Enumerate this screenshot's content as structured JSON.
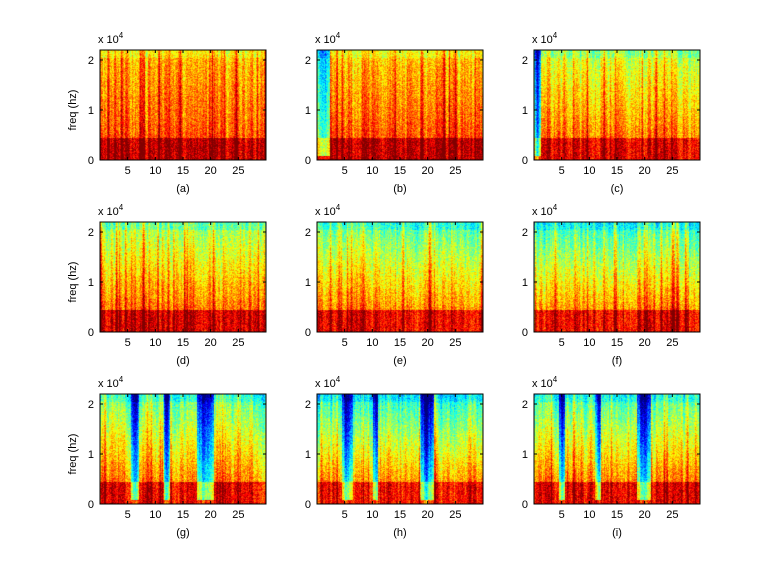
{
  "figure": {
    "scale_prefix": "x 10",
    "scale_exponent": "4"
  },
  "chart_data": [
    {
      "type": "heatmap",
      "panel_label": "(a)",
      "ylabel": "freq (hz)",
      "xlim": [
        0,
        30
      ],
      "ylim": [
        0,
        22000
      ],
      "xticks": [
        "5",
        "10",
        "15",
        "20",
        "25"
      ],
      "yticks": [
        "0",
        "1",
        "2"
      ],
      "grid": false,
      "colormap": "jet",
      "low_band_energy": 0.93,
      "high_band_energy": 0.68,
      "silent_spans": []
    },
    {
      "type": "heatmap",
      "panel_label": "(b)",
      "ylabel": "",
      "xlim": [
        0,
        30
      ],
      "ylim": [
        0,
        22000
      ],
      "xticks": [
        "5",
        "10",
        "15",
        "20",
        "25"
      ],
      "yticks": [
        "0",
        "1",
        "2"
      ],
      "grid": false,
      "colormap": "jet",
      "low_band_energy": 0.93,
      "high_band_energy": 0.66,
      "silent_spans": [
        [
          0,
          2.2
        ]
      ]
    },
    {
      "type": "heatmap",
      "panel_label": "(c)",
      "ylabel": "",
      "xlim": [
        0,
        30
      ],
      "ylim": [
        0,
        22000
      ],
      "xticks": [
        "5",
        "10",
        "15",
        "20",
        "25"
      ],
      "yticks": [
        "0",
        "1",
        "2"
      ],
      "grid": false,
      "colormap": "jet",
      "low_band_energy": 0.88,
      "high_band_energy": 0.55,
      "silent_spans": [
        [
          0,
          1.2
        ]
      ]
    },
    {
      "type": "heatmap",
      "panel_label": "(d)",
      "ylabel": "freq (hz)",
      "xlim": [
        0,
        30
      ],
      "ylim": [
        0,
        22000
      ],
      "xticks": [
        "5",
        "10",
        "15",
        "20",
        "25"
      ],
      "yticks": [
        "0",
        "1",
        "2"
      ],
      "grid": false,
      "colormap": "jet",
      "low_band_energy": 0.9,
      "high_band_energy": 0.5,
      "silent_spans": []
    },
    {
      "type": "heatmap",
      "panel_label": "(e)",
      "ylabel": "",
      "xlim": [
        0,
        30
      ],
      "ylim": [
        0,
        22000
      ],
      "xticks": [
        "5",
        "10",
        "15",
        "20",
        "25"
      ],
      "yticks": [
        "0",
        "1",
        "2"
      ],
      "grid": false,
      "colormap": "jet",
      "low_band_energy": 0.88,
      "high_band_energy": 0.45,
      "silent_spans": []
    },
    {
      "type": "heatmap",
      "panel_label": "(f)",
      "ylabel": "",
      "xlim": [
        0,
        30
      ],
      "ylim": [
        0,
        22000
      ],
      "xticks": [
        "5",
        "10",
        "15",
        "20",
        "25"
      ],
      "yticks": [
        "0",
        "1",
        "2"
      ],
      "grid": false,
      "colormap": "jet",
      "low_band_energy": 0.86,
      "high_band_energy": 0.4,
      "silent_spans": []
    },
    {
      "type": "heatmap",
      "panel_label": "(g)",
      "ylabel": "freq (hz)",
      "xlim": [
        0,
        30
      ],
      "ylim": [
        0,
        22000
      ],
      "xticks": [
        "5",
        "10",
        "15",
        "20",
        "25"
      ],
      "yticks": [
        "0",
        "1",
        "2"
      ],
      "grid": false,
      "colormap": "jet",
      "low_band_energy": 0.88,
      "high_band_energy": 0.45,
      "silent_spans": [
        [
          5.5,
          7
        ],
        [
          11.5,
          12.5
        ],
        [
          17.5,
          20.5
        ]
      ]
    },
    {
      "type": "heatmap",
      "panel_label": "(h)",
      "ylabel": "",
      "xlim": [
        0,
        30
      ],
      "ylim": [
        0,
        22000
      ],
      "xticks": [
        "5",
        "10",
        "15",
        "20",
        "25"
      ],
      "yticks": [
        "0",
        "1",
        "2"
      ],
      "grid": false,
      "colormap": "jet",
      "low_band_energy": 0.86,
      "high_band_energy": 0.38,
      "silent_spans": [
        [
          4.5,
          6.5
        ],
        [
          10,
          11
        ],
        [
          18.5,
          21
        ]
      ]
    },
    {
      "type": "heatmap",
      "panel_label": "(i)",
      "ylabel": "",
      "xlim": [
        0,
        30
      ],
      "ylim": [
        0,
        22000
      ],
      "xticks": [
        "5",
        "10",
        "15",
        "20",
        "25"
      ],
      "yticks": [
        "0",
        "1",
        "2"
      ],
      "grid": false,
      "colormap": "jet",
      "low_band_energy": 0.88,
      "high_band_energy": 0.42,
      "silent_spans": [
        [
          4.5,
          5.5
        ],
        [
          11,
          12
        ],
        [
          18.5,
          21
        ]
      ]
    }
  ]
}
